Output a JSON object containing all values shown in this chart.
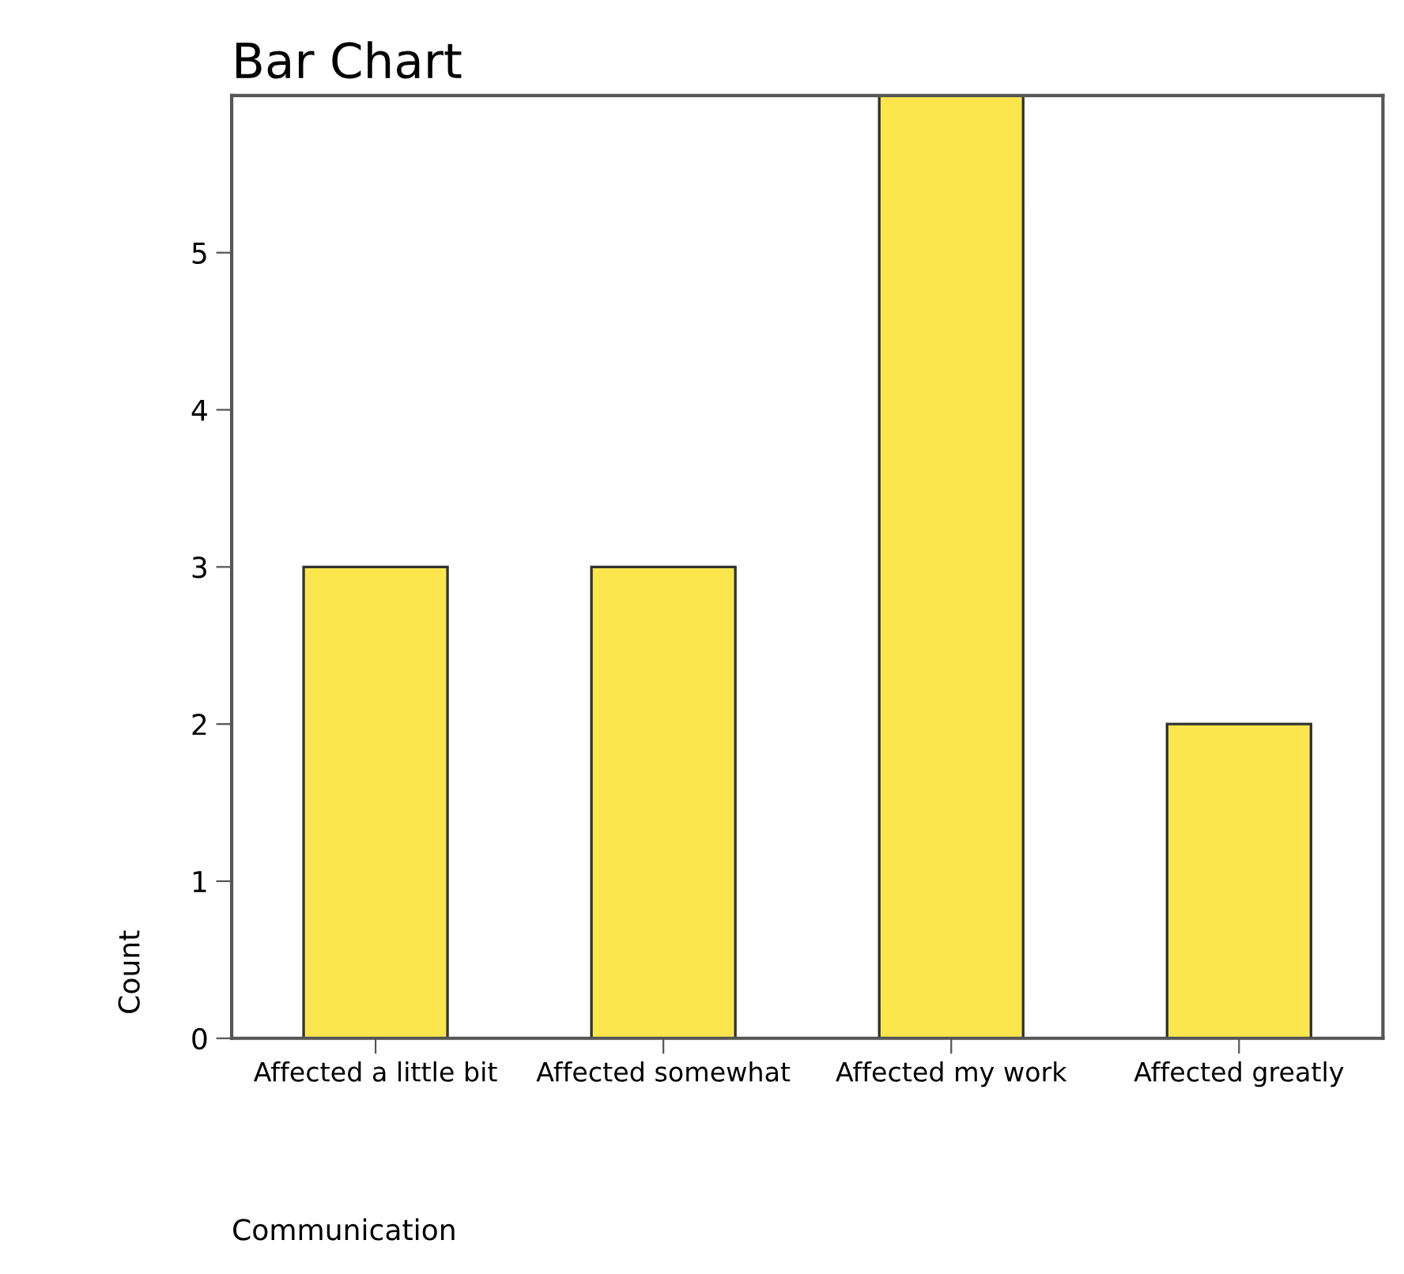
{
  "chart_data": {
    "type": "bar",
    "title": "Bar Chart",
    "xlabel": "Communication",
    "ylabel": "Count",
    "categories": [
      "Affected a little bit",
      "Affected somewhat",
      "Affected my work",
      "Affected greatly"
    ],
    "values": [
      3,
      3,
      6,
      2
    ],
    "color": "#fbe64e",
    "ylim": [
      0,
      6
    ],
    "yticks": [
      0,
      1,
      2,
      3,
      4,
      5
    ],
    "grid": false,
    "legend": false
  }
}
